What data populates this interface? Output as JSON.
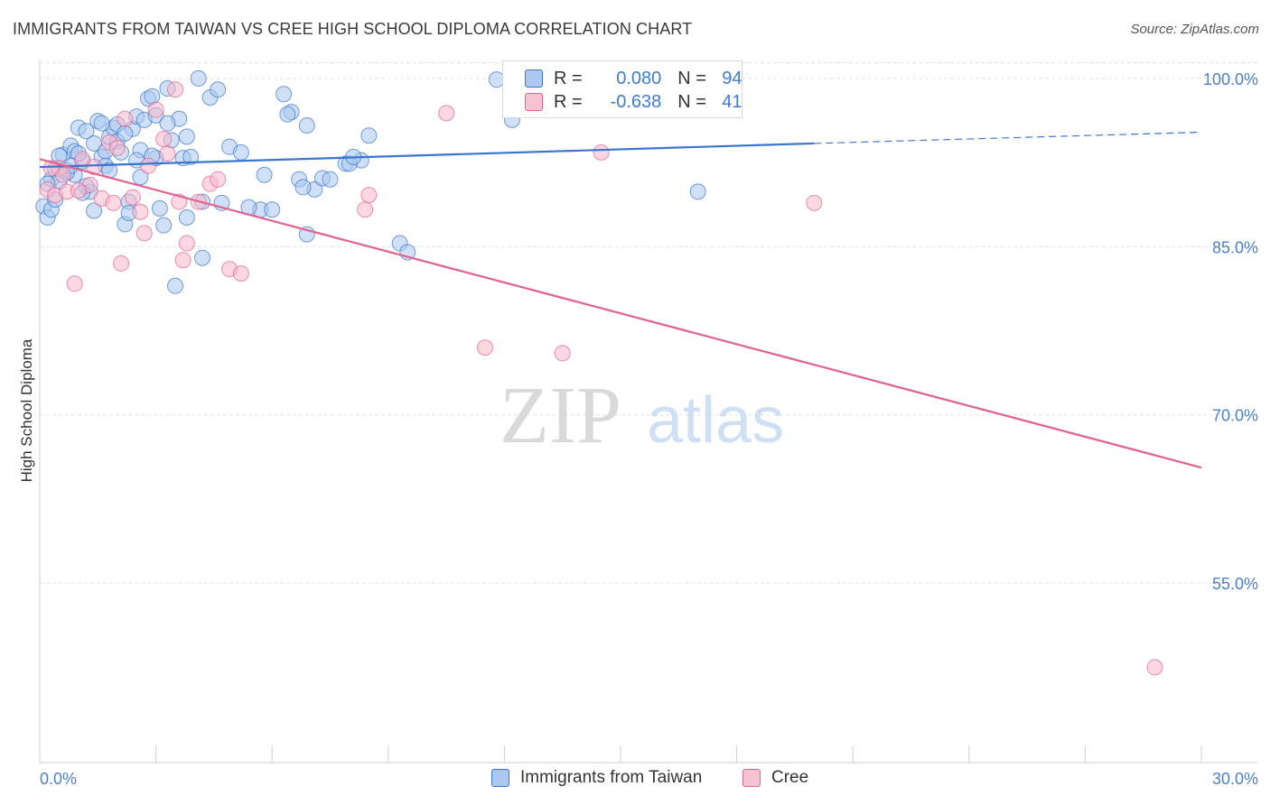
{
  "title": "IMMIGRANTS FROM TAIWAN VS CREE HIGH SCHOOL DIPLOMA CORRELATION CHART",
  "source": "Source: ZipAtlas.com",
  "watermark": {
    "zip": "ZIP",
    "atlas": "atlas"
  },
  "colors": {
    "blue": "#3a75d0",
    "blue_fill": "#aac8f0",
    "pink": "#e2638f",
    "pink_fill": "#f7b8cb",
    "axis_text": "#4a80cf",
    "grid": "#e3e3e3"
  },
  "legend": {
    "rows": [
      {
        "r_label": "R =",
        "r_value": "0.080",
        "n_label": "N =",
        "n_value": "94"
      },
      {
        "r_label": "R =",
        "r_value": "-0.638",
        "n_label": "N =",
        "n_value": "41"
      }
    ]
  },
  "bottom_legend": [
    "Immigrants from Taiwan",
    "Cree"
  ],
  "chart_data": {
    "type": "scatter",
    "xlabel": "",
    "ylabel": "High School Diploma",
    "xlim": [
      0.0,
      30.0
    ],
    "ylim": [
      39.0,
      102.0
    ],
    "x_tick_labels": [
      "0.0%",
      "30.0%"
    ],
    "y_ticks": [
      55.0,
      70.0,
      85.0,
      100.0
    ],
    "y_tick_labels": [
      "55.0%",
      "70.0%",
      "85.0%",
      "100.0%"
    ],
    "series": [
      {
        "name": "Immigrants from Taiwan",
        "color": "#3a75d0",
        "trend": {
          "x": [
            0.0,
            20.0
          ],
          "y": [
            92.1,
            94.2
          ],
          "dashed_to_x": 30.0,
          "dashed_to_y": 95.2
        },
        "points": [
          [
            0.1,
            88.6
          ],
          [
            0.2,
            87.6
          ],
          [
            0.3,
            91.0
          ],
          [
            0.4,
            91.9
          ],
          [
            0.5,
            90.8
          ],
          [
            0.6,
            93.2
          ],
          [
            0.7,
            91.8
          ],
          [
            0.8,
            94.0
          ],
          [
            0.9,
            93.5
          ],
          [
            1.0,
            95.6
          ],
          [
            1.1,
            92.6
          ],
          [
            1.2,
            95.3
          ],
          [
            1.3,
            89.9
          ],
          [
            1.4,
            94.2
          ],
          [
            1.5,
            96.2
          ],
          [
            1.6,
            93.0
          ],
          [
            1.7,
            93.5
          ],
          [
            1.8,
            94.8
          ],
          [
            1.9,
            95.6
          ],
          [
            2.0,
            94.4
          ],
          [
            2.1,
            93.4
          ],
          [
            2.2,
            87.0
          ],
          [
            2.3,
            89.0
          ],
          [
            2.4,
            95.5
          ],
          [
            2.5,
            96.6
          ],
          [
            2.6,
            91.2
          ],
          [
            2.7,
            96.3
          ],
          [
            2.8,
            98.2
          ],
          [
            2.9,
            98.4
          ],
          [
            3.0,
            96.7
          ],
          [
            3.1,
            88.4
          ],
          [
            3.2,
            86.9
          ],
          [
            3.3,
            99.1
          ],
          [
            3.4,
            94.5
          ],
          [
            3.6,
            96.4
          ],
          [
            3.8,
            87.6
          ],
          [
            4.1,
            100.0
          ],
          [
            4.4,
            98.3
          ],
          [
            4.6,
            99.0
          ],
          [
            4.9,
            93.9
          ],
          [
            5.2,
            93.4
          ],
          [
            5.8,
            91.4
          ],
          [
            6.3,
            98.6
          ],
          [
            6.5,
            97.0
          ],
          [
            6.7,
            91.0
          ],
          [
            6.9,
            95.8
          ],
          [
            7.1,
            90.1
          ],
          [
            7.9,
            92.4
          ],
          [
            8.3,
            92.7
          ],
          [
            8.5,
            94.9
          ],
          [
            9.3,
            85.3
          ],
          [
            11.8,
            99.9
          ],
          [
            12.2,
            96.3
          ],
          [
            17.0,
            89.9
          ],
          [
            0.3,
            88.3
          ],
          [
            0.4,
            89.2
          ],
          [
            0.9,
            91.4
          ],
          [
            1.4,
            88.2
          ],
          [
            1.7,
            92.2
          ],
          [
            2.3,
            88.0
          ],
          [
            2.6,
            93.6
          ],
          [
            3.0,
            92.9
          ],
          [
            3.3,
            96.0
          ],
          [
            3.7,
            92.9
          ],
          [
            4.2,
            89.0
          ],
          [
            5.7,
            88.3
          ],
          [
            6.0,
            88.3
          ],
          [
            6.4,
            96.8
          ],
          [
            6.9,
            86.1
          ],
          [
            7.3,
            91.1
          ],
          [
            8.0,
            92.4
          ],
          [
            9.5,
            84.5
          ],
          [
            3.5,
            81.5
          ],
          [
            4.2,
            84.0
          ],
          [
            3.8,
            94.8
          ],
          [
            1.0,
            93.3
          ],
          [
            1.6,
            96.0
          ],
          [
            2.0,
            95.9
          ],
          [
            2.9,
            93.1
          ],
          [
            0.7,
            91.6
          ],
          [
            1.2,
            90.4
          ],
          [
            0.5,
            93.1
          ],
          [
            1.8,
            91.8
          ],
          [
            2.5,
            92.7
          ],
          [
            4.7,
            88.9
          ],
          [
            5.4,
            88.5
          ],
          [
            6.8,
            90.3
          ],
          [
            7.5,
            91.0
          ],
          [
            8.1,
            93.0
          ],
          [
            0.2,
            90.6
          ],
          [
            1.1,
            89.8
          ],
          [
            3.9,
            93.0
          ],
          [
            2.2,
            95.1
          ],
          [
            0.8,
            92.2
          ]
        ]
      },
      {
        "name": "Cree",
        "color": "#e2638f",
        "trend": {
          "x": [
            0.0,
            30.0
          ],
          "y": [
            92.8,
            65.3
          ]
        },
        "points": [
          [
            0.2,
            90.1
          ],
          [
            0.4,
            89.6
          ],
          [
            0.5,
            92.0
          ],
          [
            0.7,
            89.9
          ],
          [
            0.9,
            81.7
          ],
          [
            1.1,
            92.8
          ],
          [
            1.3,
            90.5
          ],
          [
            1.6,
            89.3
          ],
          [
            1.8,
            94.3
          ],
          [
            2.0,
            93.8
          ],
          [
            2.1,
            83.5
          ],
          [
            2.4,
            89.4
          ],
          [
            2.6,
            88.1
          ],
          [
            2.8,
            92.2
          ],
          [
            3.0,
            97.2
          ],
          [
            3.3,
            93.3
          ],
          [
            3.6,
            89.0
          ],
          [
            3.8,
            85.3
          ],
          [
            4.1,
            89.0
          ],
          [
            4.4,
            90.6
          ],
          [
            4.9,
            83.0
          ],
          [
            5.2,
            82.6
          ],
          [
            8.4,
            88.3
          ],
          [
            8.5,
            89.6
          ],
          [
            10.5,
            96.9
          ],
          [
            11.5,
            76.0
          ],
          [
            13.5,
            75.5
          ],
          [
            14.5,
            93.4
          ],
          [
            20.0,
            88.9
          ],
          [
            28.8,
            47.5
          ],
          [
            0.6,
            91.4
          ],
          [
            1.4,
            92.1
          ],
          [
            1.9,
            88.9
          ],
          [
            2.7,
            86.2
          ],
          [
            3.2,
            94.6
          ],
          [
            3.7,
            83.8
          ],
          [
            4.6,
            91.0
          ],
          [
            0.3,
            92.0
          ],
          [
            2.2,
            96.4
          ],
          [
            3.5,
            99.0
          ],
          [
            1.0,
            90.0
          ]
        ]
      }
    ]
  }
}
